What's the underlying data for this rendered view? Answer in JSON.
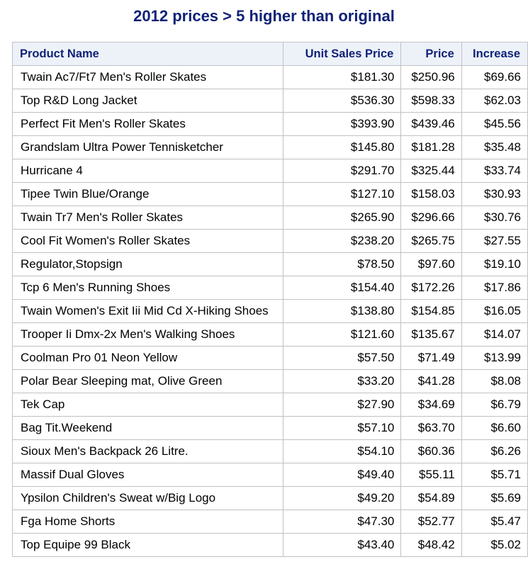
{
  "title": "2012 prices > 5 higher than original",
  "table": {
    "headers": [
      "Product Name",
      "Unit Sales Price",
      "Price",
      "Increase"
    ],
    "rows": [
      [
        "Twain Ac7/Ft7 Men's Roller Skates",
        "$181.30",
        "$250.96",
        "$69.66"
      ],
      [
        "Top R&D Long Jacket",
        "$536.30",
        "$598.33",
        "$62.03"
      ],
      [
        "Perfect Fit Men's Roller Skates",
        "$393.90",
        "$439.46",
        "$45.56"
      ],
      [
        "Grandslam Ultra Power Tennisketcher",
        "$145.80",
        "$181.28",
        "$35.48"
      ],
      [
        "Hurricane 4",
        "$291.70",
        "$325.44",
        "$33.74"
      ],
      [
        "Tipee Twin Blue/Orange",
        "$127.10",
        "$158.03",
        "$30.93"
      ],
      [
        "Twain Tr7 Men's Roller Skates",
        "$265.90",
        "$296.66",
        "$30.76"
      ],
      [
        "Cool Fit Women's Roller Skates",
        "$238.20",
        "$265.75",
        "$27.55"
      ],
      [
        "Regulator,Stopsign",
        "$78.50",
        "$97.60",
        "$19.10"
      ],
      [
        "Tcp 6 Men's Running Shoes",
        "$154.40",
        "$172.26",
        "$17.86"
      ],
      [
        "Twain Women's Exit Iii Mid Cd X-Hiking Shoes",
        "$138.80",
        "$154.85",
        "$16.05"
      ],
      [
        "Trooper Ii Dmx-2x Men's Walking Shoes",
        "$121.60",
        "$135.67",
        "$14.07"
      ],
      [
        "Coolman Pro 01 Neon Yellow",
        "$57.50",
        "$71.49",
        "$13.99"
      ],
      [
        "Polar Bear Sleeping mat, Olive Green",
        "$33.20",
        "$41.28",
        "$8.08"
      ],
      [
        "Tek Cap",
        "$27.90",
        "$34.69",
        "$6.79"
      ],
      [
        "Bag Tit.Weekend",
        "$57.10",
        "$63.70",
        "$6.60"
      ],
      [
        "Sioux Men's Backpack 26 Litre.",
        "$54.10",
        "$60.36",
        "$6.26"
      ],
      [
        "Massif Dual Gloves",
        "$49.40",
        "$55.11",
        "$5.71"
      ],
      [
        "Ypsilon Children's Sweat w/Big Logo",
        "$49.20",
        "$54.89",
        "$5.69"
      ],
      [
        "Fga Home Shorts",
        "$47.30",
        "$52.77",
        "$5.47"
      ],
      [
        "Top Equipe 99 Black",
        "$43.40",
        "$48.42",
        "$5.02"
      ]
    ]
  },
  "colors": {
    "title": "#112277",
    "header_bg": "#edf2f9",
    "border": "#c1c1c1"
  }
}
